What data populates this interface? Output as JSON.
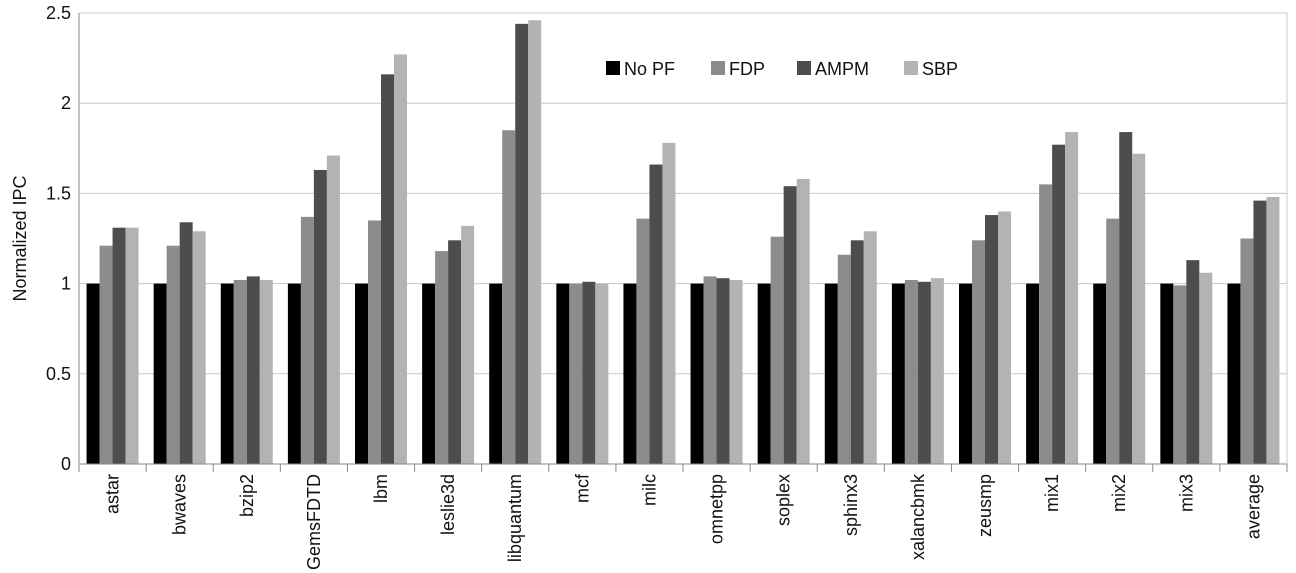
{
  "chart_data": {
    "type": "bar",
    "title": "",
    "xlabel": "",
    "ylabel": "Normalized IPC",
    "ylim": [
      0,
      2.5
    ],
    "yticks": [
      "0",
      "0.5",
      "1",
      "1.5",
      "2",
      "2.5"
    ],
    "ytick_values": [
      0,
      0.5,
      1,
      1.5,
      2,
      2.5
    ],
    "grid": "horizontal",
    "legend_position": "top-center",
    "categories": [
      "astar",
      "bwaves",
      "bzip2",
      "GemsFDTD",
      "lbm",
      "leslie3d",
      "libquantum",
      "mcf",
      "milc",
      "omnetpp",
      "soplex",
      "sphinx3",
      "xalancbmk",
      "zeusmp",
      "mix1",
      "mix2",
      "mix3",
      "average"
    ],
    "series": [
      {
        "name": "No PF",
        "color": "#000000",
        "values": [
          1,
          1,
          1,
          1,
          1,
          1,
          1,
          1,
          1,
          1,
          1,
          1,
          1,
          1,
          1,
          1,
          1,
          1
        ]
      },
      {
        "name": "FDP",
        "color": "#8c8c8c",
        "values": [
          1.21,
          1.21,
          1.02,
          1.37,
          1.35,
          1.18,
          1.85,
          1.0,
          1.36,
          1.04,
          1.26,
          1.16,
          1.02,
          1.24,
          1.55,
          1.36,
          0.99,
          1.25
        ]
      },
      {
        "name": "AMPM",
        "color": "#4d4d4d",
        "values": [
          1.31,
          1.34,
          1.04,
          1.63,
          2.16,
          1.24,
          2.44,
          1.01,
          1.66,
          1.03,
          1.54,
          1.24,
          1.01,
          1.38,
          1.77,
          1.84,
          1.13,
          1.46
        ]
      },
      {
        "name": "SBP",
        "color": "#b3b3b3",
        "values": [
          1.31,
          1.29,
          1.02,
          1.71,
          2.27,
          1.32,
          2.46,
          1.0,
          1.78,
          1.02,
          1.58,
          1.29,
          1.03,
          1.4,
          1.84,
          1.72,
          1.06,
          1.48
        ]
      }
    ]
  }
}
